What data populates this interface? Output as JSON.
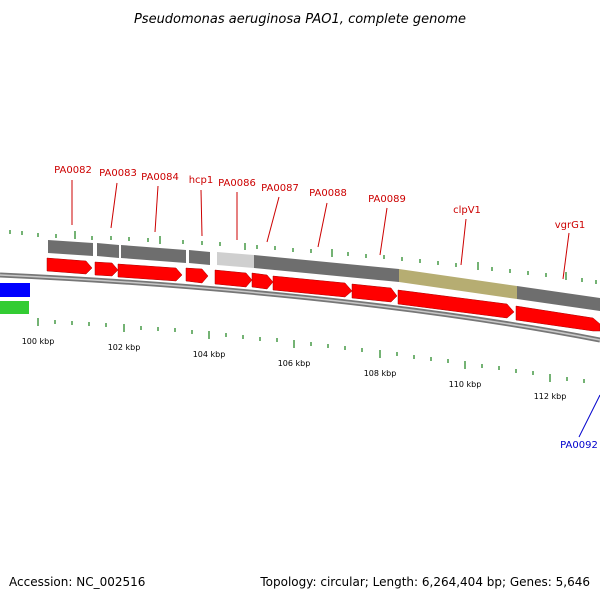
{
  "title": "Pseudomonas aeruginosa PAO1, complete genome",
  "footer": {
    "accession": "Accession: NC_002516",
    "summary": "Topology: circular; Length: 6,264,404 bp; Genes: 5,646"
  },
  "colors": {
    "cds": "#ff0000",
    "gene_label": "#cc0000",
    "highlight_label": "#0000cc",
    "gene_bar": "#6e6e6e",
    "gene_bar_light": "#cfcfcf",
    "gene_bar_gold": "#b6ad72",
    "tick": "#2a8a2a",
    "backbone": "#888888",
    "blue_feature": "#0000ff",
    "green_feature": "#33cc33"
  },
  "gene_labels": [
    {
      "text": "PA0082",
      "color": "red"
    },
    {
      "text": "PA0083",
      "color": "red"
    },
    {
      "text": "PA0084",
      "color": "red"
    },
    {
      "text": "hcp1",
      "color": "red"
    },
    {
      "text": "PA0086",
      "color": "red"
    },
    {
      "text": "PA0087",
      "color": "red"
    },
    {
      "text": "PA0088",
      "color": "red"
    },
    {
      "text": "PA0089",
      "color": "red"
    },
    {
      "text": "clpV1",
      "color": "red"
    },
    {
      "text": "vgrG1",
      "color": "red"
    },
    {
      "text": "PA0092",
      "color": "blue"
    }
  ],
  "tick_labels": [
    "100 kbp",
    "102 kbp",
    "104 kbp",
    "106 kbp",
    "108 kbp",
    "110 kbp",
    "112 kbp"
  ]
}
